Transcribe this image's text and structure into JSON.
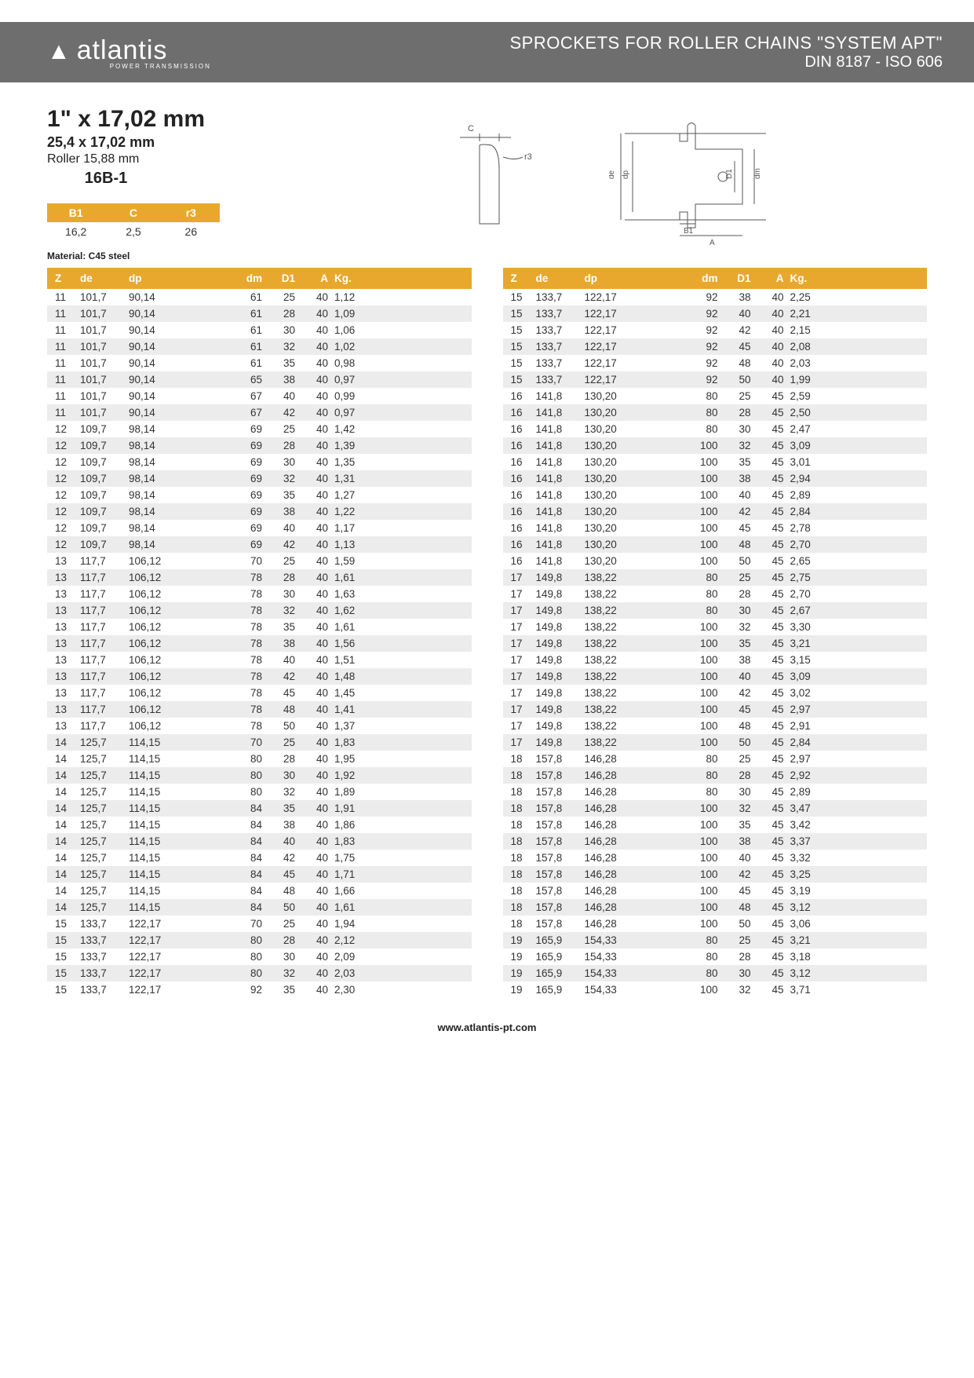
{
  "header": {
    "logo_text": "atlantis",
    "logo_tagline": "POWER TRANSMISSION",
    "title": "SPROCKETS FOR ROLLER CHAINS \"SYSTEM APT\"",
    "subtitle": "DIN 8187 - ISO 606"
  },
  "spec": {
    "main": "1\" x 17,02 mm",
    "sub1": "25,4 x 17,02 mm",
    "sub2": "Roller 15,88 mm",
    "code": "16B-1",
    "material": "Material: C45 steel"
  },
  "small_table": {
    "headers": [
      "B1",
      "C",
      "r3"
    ],
    "values": [
      "16,2",
      "2,5",
      "26"
    ]
  },
  "diagram_labels": {
    "c": "C",
    "r3": "r3",
    "de": "de",
    "dp": "dp",
    "d1": "D1",
    "dm": "dm",
    "b1": "B1",
    "a": "A"
  },
  "table_headers": [
    "Z",
    "de",
    "dp",
    "dm",
    "D1",
    "A",
    "Kg."
  ],
  "table_left": [
    [
      "11",
      "101,7",
      "90,14",
      "61",
      "25",
      "40",
      "1,12"
    ],
    [
      "11",
      "101,7",
      "90,14",
      "61",
      "28",
      "40",
      "1,09"
    ],
    [
      "11",
      "101,7",
      "90,14",
      "61",
      "30",
      "40",
      "1,06"
    ],
    [
      "11",
      "101,7",
      "90,14",
      "61",
      "32",
      "40",
      "1,02"
    ],
    [
      "11",
      "101,7",
      "90,14",
      "61",
      "35",
      "40",
      "0,98"
    ],
    [
      "11",
      "101,7",
      "90,14",
      "65",
      "38",
      "40",
      "0,97"
    ],
    [
      "11",
      "101,7",
      "90,14",
      "67",
      "40",
      "40",
      "0,99"
    ],
    [
      "11",
      "101,7",
      "90,14",
      "67",
      "42",
      "40",
      "0,97"
    ],
    [
      "12",
      "109,7",
      "98,14",
      "69",
      "25",
      "40",
      "1,42"
    ],
    [
      "12",
      "109,7",
      "98,14",
      "69",
      "28",
      "40",
      "1,39"
    ],
    [
      "12",
      "109,7",
      "98,14",
      "69",
      "30",
      "40",
      "1,35"
    ],
    [
      "12",
      "109,7",
      "98,14",
      "69",
      "32",
      "40",
      "1,31"
    ],
    [
      "12",
      "109,7",
      "98,14",
      "69",
      "35",
      "40",
      "1,27"
    ],
    [
      "12",
      "109,7",
      "98,14",
      "69",
      "38",
      "40",
      "1,22"
    ],
    [
      "12",
      "109,7",
      "98,14",
      "69",
      "40",
      "40",
      "1,17"
    ],
    [
      "12",
      "109,7",
      "98,14",
      "69",
      "42",
      "40",
      "1,13"
    ],
    [
      "13",
      "117,7",
      "106,12",
      "70",
      "25",
      "40",
      "1,59"
    ],
    [
      "13",
      "117,7",
      "106,12",
      "78",
      "28",
      "40",
      "1,61"
    ],
    [
      "13",
      "117,7",
      "106,12",
      "78",
      "30",
      "40",
      "1,63"
    ],
    [
      "13",
      "117,7",
      "106,12",
      "78",
      "32",
      "40",
      "1,62"
    ],
    [
      "13",
      "117,7",
      "106,12",
      "78",
      "35",
      "40",
      "1,61"
    ],
    [
      "13",
      "117,7",
      "106,12",
      "78",
      "38",
      "40",
      "1,56"
    ],
    [
      "13",
      "117,7",
      "106,12",
      "78",
      "40",
      "40",
      "1,51"
    ],
    [
      "13",
      "117,7",
      "106,12",
      "78",
      "42",
      "40",
      "1,48"
    ],
    [
      "13",
      "117,7",
      "106,12",
      "78",
      "45",
      "40",
      "1,45"
    ],
    [
      "13",
      "117,7",
      "106,12",
      "78",
      "48",
      "40",
      "1,41"
    ],
    [
      "13",
      "117,7",
      "106,12",
      "78",
      "50",
      "40",
      "1,37"
    ],
    [
      "14",
      "125,7",
      "114,15",
      "70",
      "25",
      "40",
      "1,83"
    ],
    [
      "14",
      "125,7",
      "114,15",
      "80",
      "28",
      "40",
      "1,95"
    ],
    [
      "14",
      "125,7",
      "114,15",
      "80",
      "30",
      "40",
      "1,92"
    ],
    [
      "14",
      "125,7",
      "114,15",
      "80",
      "32",
      "40",
      "1,89"
    ],
    [
      "14",
      "125,7",
      "114,15",
      "84",
      "35",
      "40",
      "1,91"
    ],
    [
      "14",
      "125,7",
      "114,15",
      "84",
      "38",
      "40",
      "1,86"
    ],
    [
      "14",
      "125,7",
      "114,15",
      "84",
      "40",
      "40",
      "1,83"
    ],
    [
      "14",
      "125,7",
      "114,15",
      "84",
      "42",
      "40",
      "1,75"
    ],
    [
      "14",
      "125,7",
      "114,15",
      "84",
      "45",
      "40",
      "1,71"
    ],
    [
      "14",
      "125,7",
      "114,15",
      "84",
      "48",
      "40",
      "1,66"
    ],
    [
      "14",
      "125,7",
      "114,15",
      "84",
      "50",
      "40",
      "1,61"
    ],
    [
      "15",
      "133,7",
      "122,17",
      "70",
      "25",
      "40",
      "1,94"
    ],
    [
      "15",
      "133,7",
      "122,17",
      "80",
      "28",
      "40",
      "2,12"
    ],
    [
      "15",
      "133,7",
      "122,17",
      "80",
      "30",
      "40",
      "2,09"
    ],
    [
      "15",
      "133,7",
      "122,17",
      "80",
      "32",
      "40",
      "2,03"
    ],
    [
      "15",
      "133,7",
      "122,17",
      "92",
      "35",
      "40",
      "2,30"
    ]
  ],
  "table_right": [
    [
      "15",
      "133,7",
      "122,17",
      "92",
      "38",
      "40",
      "2,25"
    ],
    [
      "15",
      "133,7",
      "122,17",
      "92",
      "40",
      "40",
      "2,21"
    ],
    [
      "15",
      "133,7",
      "122,17",
      "92",
      "42",
      "40",
      "2,15"
    ],
    [
      "15",
      "133,7",
      "122,17",
      "92",
      "45",
      "40",
      "2,08"
    ],
    [
      "15",
      "133,7",
      "122,17",
      "92",
      "48",
      "40",
      "2,03"
    ],
    [
      "15",
      "133,7",
      "122,17",
      "92",
      "50",
      "40",
      "1,99"
    ],
    [
      "16",
      "141,8",
      "130,20",
      "80",
      "25",
      "45",
      "2,59"
    ],
    [
      "16",
      "141,8",
      "130,20",
      "80",
      "28",
      "45",
      "2,50"
    ],
    [
      "16",
      "141,8",
      "130,20",
      "80",
      "30",
      "45",
      "2,47"
    ],
    [
      "16",
      "141,8",
      "130,20",
      "100",
      "32",
      "45",
      "3,09"
    ],
    [
      "16",
      "141,8",
      "130,20",
      "100",
      "35",
      "45",
      "3,01"
    ],
    [
      "16",
      "141,8",
      "130,20",
      "100",
      "38",
      "45",
      "2,94"
    ],
    [
      "16",
      "141,8",
      "130,20",
      "100",
      "40",
      "45",
      "2,89"
    ],
    [
      "16",
      "141,8",
      "130,20",
      "100",
      "42",
      "45",
      "2,84"
    ],
    [
      "16",
      "141,8",
      "130,20",
      "100",
      "45",
      "45",
      "2,78"
    ],
    [
      "16",
      "141,8",
      "130,20",
      "100",
      "48",
      "45",
      "2,70"
    ],
    [
      "16",
      "141,8",
      "130,20",
      "100",
      "50",
      "45",
      "2,65"
    ],
    [
      "17",
      "149,8",
      "138,22",
      "80",
      "25",
      "45",
      "2,75"
    ],
    [
      "17",
      "149,8",
      "138,22",
      "80",
      "28",
      "45",
      "2,70"
    ],
    [
      "17",
      "149,8",
      "138,22",
      "80",
      "30",
      "45",
      "2,67"
    ],
    [
      "17",
      "149,8",
      "138,22",
      "100",
      "32",
      "45",
      "3,30"
    ],
    [
      "17",
      "149,8",
      "138,22",
      "100",
      "35",
      "45",
      "3,21"
    ],
    [
      "17",
      "149,8",
      "138,22",
      "100",
      "38",
      "45",
      "3,15"
    ],
    [
      "17",
      "149,8",
      "138,22",
      "100",
      "40",
      "45",
      "3,09"
    ],
    [
      "17",
      "149,8",
      "138,22",
      "100",
      "42",
      "45",
      "3,02"
    ],
    [
      "17",
      "149,8",
      "138,22",
      "100",
      "45",
      "45",
      "2,97"
    ],
    [
      "17",
      "149,8",
      "138,22",
      "100",
      "48",
      "45",
      "2,91"
    ],
    [
      "17",
      "149,8",
      "138,22",
      "100",
      "50",
      "45",
      "2,84"
    ],
    [
      "18",
      "157,8",
      "146,28",
      "80",
      "25",
      "45",
      "2,97"
    ],
    [
      "18",
      "157,8",
      "146,28",
      "80",
      "28",
      "45",
      "2,92"
    ],
    [
      "18",
      "157,8",
      "146,28",
      "80",
      "30",
      "45",
      "2,89"
    ],
    [
      "18",
      "157,8",
      "146,28",
      "100",
      "32",
      "45",
      "3,47"
    ],
    [
      "18",
      "157,8",
      "146,28",
      "100",
      "35",
      "45",
      "3,42"
    ],
    [
      "18",
      "157,8",
      "146,28",
      "100",
      "38",
      "45",
      "3,37"
    ],
    [
      "18",
      "157,8",
      "146,28",
      "100",
      "40",
      "45",
      "3,32"
    ],
    [
      "18",
      "157,8",
      "146,28",
      "100",
      "42",
      "45",
      "3,25"
    ],
    [
      "18",
      "157,8",
      "146,28",
      "100",
      "45",
      "45",
      "3,19"
    ],
    [
      "18",
      "157,8",
      "146,28",
      "100",
      "48",
      "45",
      "3,12"
    ],
    [
      "18",
      "157,8",
      "146,28",
      "100",
      "50",
      "45",
      "3,06"
    ],
    [
      "19",
      "165,9",
      "154,33",
      "80",
      "25",
      "45",
      "3,21"
    ],
    [
      "19",
      "165,9",
      "154,33",
      "80",
      "28",
      "45",
      "3,18"
    ],
    [
      "19",
      "165,9",
      "154,33",
      "80",
      "30",
      "45",
      "3,12"
    ],
    [
      "19",
      "165,9",
      "154,33",
      "100",
      "32",
      "45",
      "3,71"
    ]
  ],
  "footer": "www.atlantis-pt.com",
  "colors": {
    "header_bg": "#6e6e6e",
    "accent": "#e8a82e",
    "row_alt": "#ececec",
    "text": "#333333"
  }
}
